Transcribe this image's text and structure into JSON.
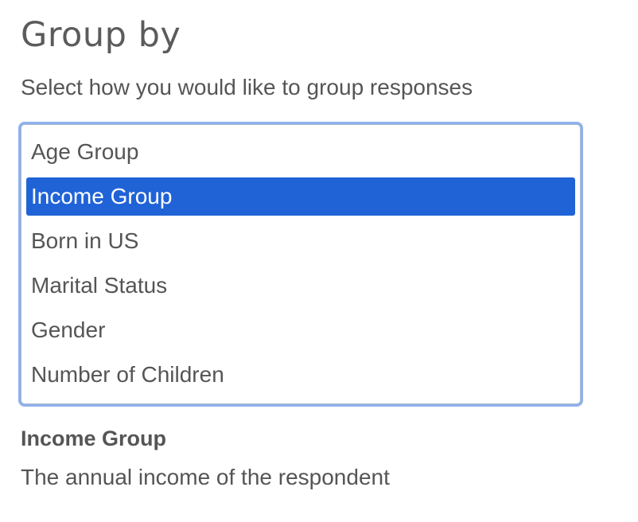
{
  "heading": "Group by",
  "subtitle": "Select how you would like to group responses",
  "listbox": {
    "options": [
      {
        "label": "Age Group",
        "selected": false
      },
      {
        "label": "Income Group",
        "selected": true
      },
      {
        "label": "Born in US",
        "selected": false
      },
      {
        "label": "Marital Status",
        "selected": false
      },
      {
        "label": "Gender",
        "selected": false
      },
      {
        "label": "Number of Children",
        "selected": false
      }
    ]
  },
  "detail": {
    "title": "Income Group",
    "description": "The annual income of the respondent"
  },
  "colors": {
    "selected_background": "#2063d7",
    "focus_ring": "#8fb0ee",
    "text": "#555555"
  }
}
